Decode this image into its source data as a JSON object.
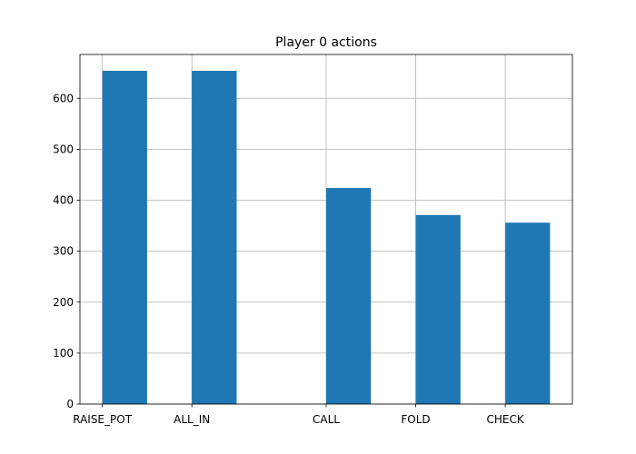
{
  "chart_data": {
    "type": "bar",
    "title": "Player 0 actions",
    "xlabel": "",
    "ylabel": "",
    "x_ticks": [
      {
        "label": "RAISE_POT",
        "value": 0
      },
      {
        "label": "ALL_IN",
        "value": 1
      },
      {
        "label": "CALL",
        "value": 2.5
      },
      {
        "label": "FOLD",
        "value": 3.5
      },
      {
        "label": "CHECK",
        "value": 4.5
      }
    ],
    "bars": [
      {
        "x_start": 0.0,
        "x_end": 0.5,
        "value": 654
      },
      {
        "x_start": 1.0,
        "x_end": 1.5,
        "value": 654
      },
      {
        "x_start": 2.5,
        "x_end": 3.0,
        "value": 424
      },
      {
        "x_start": 3.5,
        "x_end": 4.0,
        "value": 371
      },
      {
        "x_start": 4.5,
        "x_end": 5.0,
        "value": 356
      }
    ],
    "xlim": [
      -0.25,
      5.25
    ],
    "ylim": [
      0,
      686
    ],
    "y_ticks": [
      0,
      100,
      200,
      300,
      400,
      500,
      600
    ],
    "grid": true,
    "bar_color": "#1f77b4"
  }
}
